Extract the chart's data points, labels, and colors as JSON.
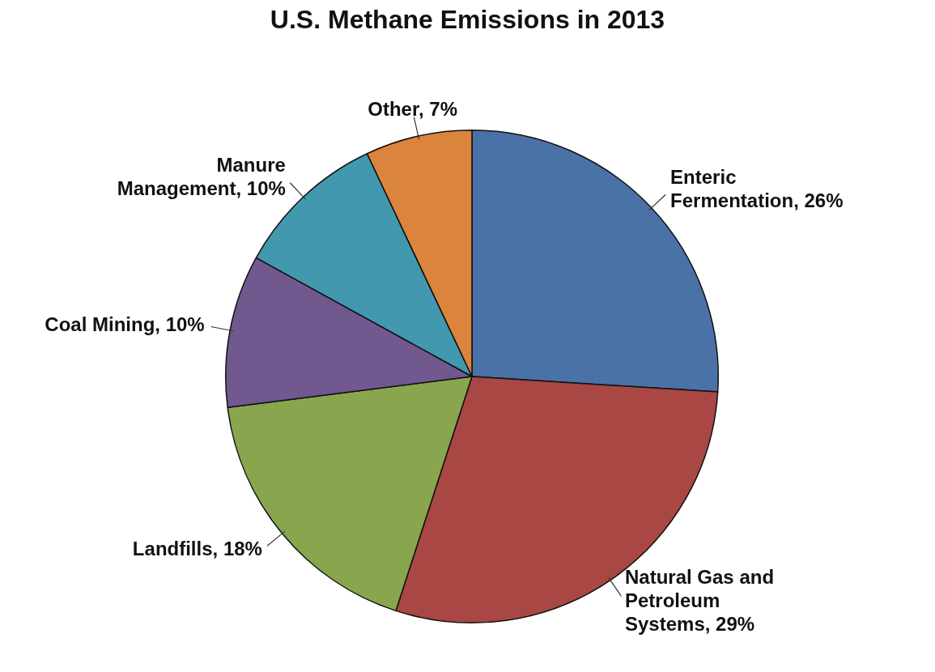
{
  "chart_data": {
    "type": "pie",
    "title": "U.S. Methane Emissions in 2013",
    "categories": [
      "Enteric Fermentation",
      "Natural Gas and Petroleum Systems",
      "Landfills",
      "Coal Mining",
      "Manure Management",
      "Other"
    ],
    "values": [
      26,
      29,
      18,
      10,
      10,
      7
    ],
    "value_labels": [
      "26%",
      "29%",
      "18%",
      "10%",
      "10%",
      "7%"
    ],
    "colors": [
      "#4a72a6",
      "#a84744",
      "#89a54e",
      "#71588f",
      "#4198af",
      "#db843d"
    ],
    "legend": false
  }
}
